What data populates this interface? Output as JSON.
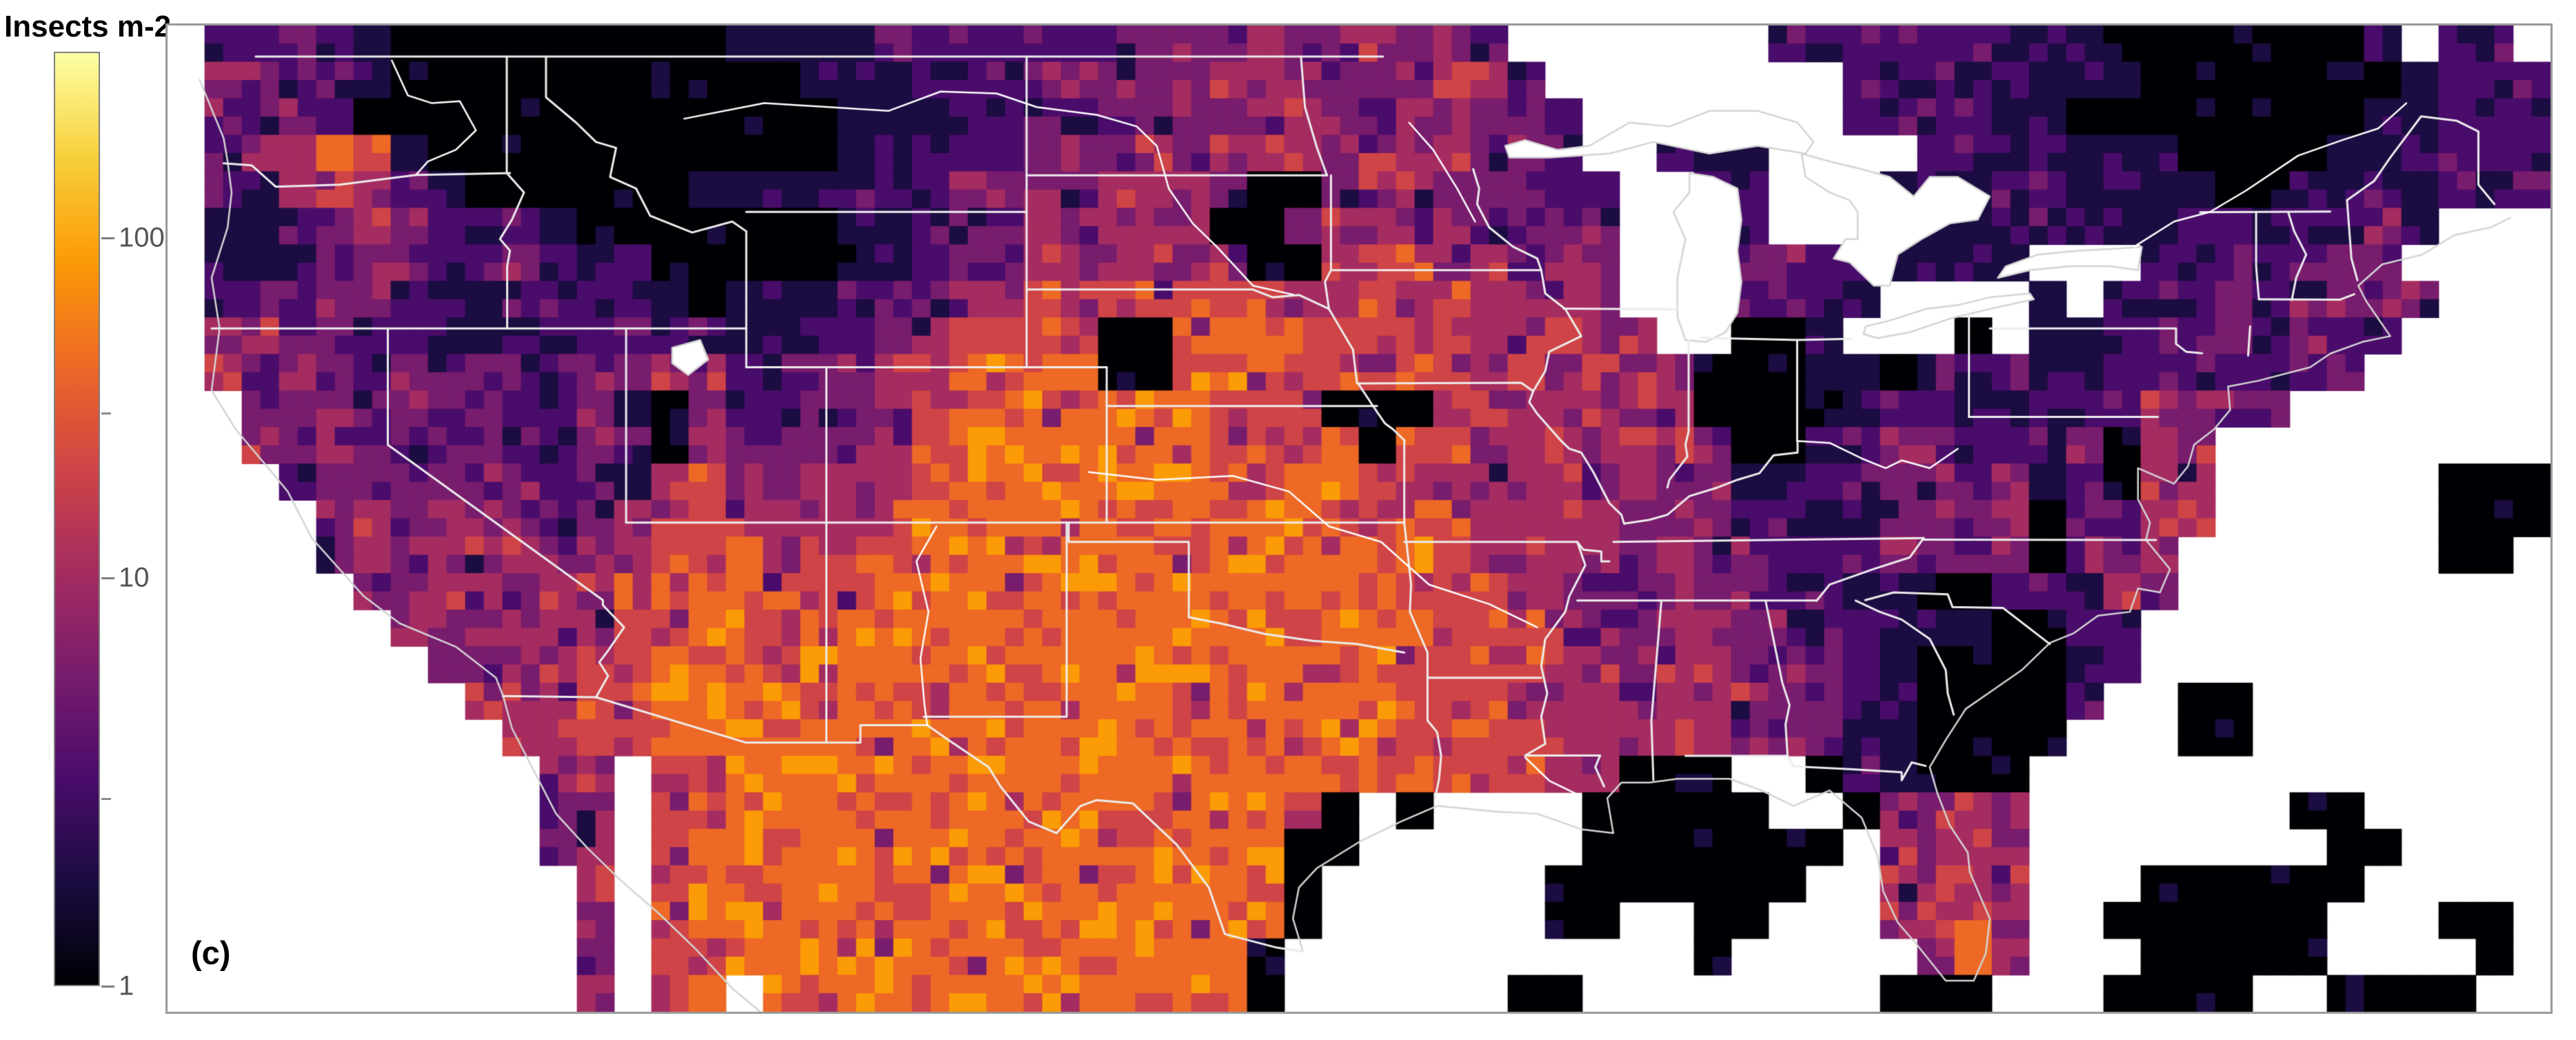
{
  "panel_label": "(c)",
  "colorbar": {
    "title": "Insects m-2",
    "scale": "log",
    "colormap": "inferno",
    "tick_labels": [
      "100",
      "10",
      "1"
    ],
    "tick_positions_pct": [
      19.9,
      56.3,
      100
    ],
    "minor_tick_positions_pct": [
      38.7,
      79.9
    ],
    "palette": [
      "#000004",
      "#1b0c41",
      "#4a0c6b",
      "#781c6d",
      "#a52c60",
      "#cf4446",
      "#ed6925",
      "#fb9b06",
      "#f7d03c",
      "#fcffa4"
    ],
    "border_color": "#7f7f7f",
    "tick_text_color": "#545454"
  },
  "map": {
    "no_data_color": "#ffffff",
    "state_line_color": "#ededed",
    "river_color": "#ffffff",
    "coast_color": "#d4d4d4",
    "frame_color": "#9a9a9a",
    "grid_cols": 64,
    "grid_rows": 27,
    "jitter_seed": 1337,
    "grid": [
      ".223210000000001111222222333343343 32....   22222211100000 0 02.22",
      ".43221000000000001112223333344433 3442...     22222111000 00001222",
      ".32320000000000000111222233333433 44332..     22221100000 00011222",
      ".24565100000000000112223334344434 44332..211    222211100 00112222",
      ".22454210000001111222333344430034 433322..22   1112211110 01121222",
      ".11234322210000000112234344400344 443233..32   1111221122 12232...",
      ".11223322321200000012334444440044 544343..3332211 11   223 2233....",
      ".22233211222210111223445455555445 454444..32221....1.2233 23333...",
      ".34332211212322112234556500666555 4544544..001...0.112223 2322....",
      ".43432323223344223345666600666555 5545444300011021 2112222 223.....",
      "..3342323223103223345666666655500 04544444000012211222433 3.......",
      "..4343333223304333445666666655560 55444444300123322230 44.        ",
      "...233333323145434445666666665665 54444343311233323120 44.     000",
      "....34344323445544456666666666665 55444433322113333032 44.     000",
      "....24344433455645556666666566665 65444434332223323033 4..     00.",
      ".....3344344556655566666666666666 55544334332211002224 3..        ",
      "......4334445566556666666666665666555443443322111 0022...         ",
      ".......334455666566666666666666566555544344333210 00012...        ",
      "        4445566666665666666566666555444344433210 0002..00         ",
      "         44556666666666666666665665555444443331100 00...00        ",
      "          44.55666666666666666666665554400 0..021000              ",
      "          34.55666666666666666665 0.0....00000 0..04443......0 0  ",
      "          34.56666666666666666600       0000000 0.4454......  00  ",
      "           4.5666666666666666660 .     000 0000..4544...00000 0   ",
      "           3.5666666666666666660 .     00..00...4554..0000 00...0.",
      "           3.5566666666666666660 ..        .0.....464...000 00...0",
      "           3.56.6666666666666 0......00.......00 0...0000..0000.."
    ],
    "grid_rows_clean": [
      ".2232100000000011112222223333433 4332.......2222221110000 0002.22",
      ".4322100 00000000 01112223 33334443 33442... .....222 22111000 00001222",
      ".3232000 00000000 00111222 23333343 344332.. .....222 21100000 00011222",
      ".2456510 00000000 00112223 33434443 444332.. 211....2 22211100 00112222",
      ".2245421 00000011 11222333 34443003 4433322. .22...11 12211110 01121222",
      ".1123432 22100000 00112234 34440034 4443233. .32...11 11221122 12232...",
      ".1122332 23212000 00012334 44444004 4544343. .3332211 11...223 2233....",
      ".2223321 12222101 11223445 45555544 5454444. .32221.. ..1.2233 23333...",
      ".3433221 12123221 12234556 50066655 54544544 ..001... 0.112223 2322....",
      ".4343232 32233442 23345666 60066655 55545444 30001102 12112222 223.....",
      "..334232 32231032 23345666 66665550 00454444 40000122 11222433 3.......",
      "..434333 32233043 33445666 66665556 05544444 43001233 2223044. ........",
      "...23333 33231454 34445666 66666566 55444434 33112333 2312044. .....000",
      "....3434 43234455 44456666 66666666 55544443 33221133 3303244. .....000",
      "....2434 44334556 45556666 66656666 56544443 43322233 230334.. .....00.",
      ".....334 43445566 55566666 66666666 65554433 43322110 022243.. ........",
      "......43 34445566 55666666 66666656 66555443 44332211 10022... ........",
      ".......3 34455666 56666666 66666665 65555443 44333210 00012... ........",
      "........ 44455666 66665666 66656666 65554443 44433210 0002..00 ........",
      "........ .4455666 66666666 66666656 65555444 44333110 000...00 ........",
      "........ ..44.556 66666666 66666665 66555440 00..0210 00...... ........",
      "........ ..34.556 66666666 66666650 .0....00 000..044 43...... .00.....",
      "........ ..34.566 66666666 66666600 ......00 00000.44 54...... ..00....",
      "........ ...4.566 66666666 6666660. .....000 0000..45 44...000 000.....",
      "........ ...3.566 66666666 6666660. .....00. .00...45 54..0000 00...00.",
      "........ ...3.556 66666666 666660.. ........ .0.....4 64...000 00....0.",
      "........ ...3.56. 66666666 666660.. ....00.. ......00 0...0000 ..0000.."
    ]
  }
}
